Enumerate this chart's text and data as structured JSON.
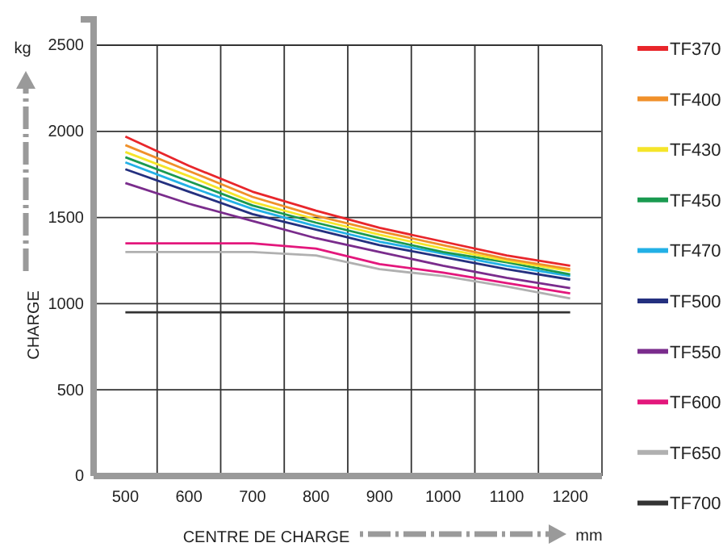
{
  "chart_data": {
    "type": "line",
    "xlabel": "CENTRE DE CHARGE",
    "ylabel": "CHARGE",
    "annotations": [
      "kg",
      "mm"
    ],
    "x": [
      500,
      600,
      700,
      800,
      900,
      1000,
      1100,
      1200
    ],
    "xlim": [
      450,
      1250
    ],
    "xticks": [
      500,
      {
        "value": 550,
        "label": null
      },
      600,
      {
        "value": 650,
        "label": null
      },
      700,
      {
        "value": 750,
        "label": null
      },
      800,
      {
        "value": 850,
        "label": null
      },
      900,
      {
        "value": 950,
        "label": null
      },
      1000,
      {
        "value": 1050,
        "label": null
      },
      1100,
      {
        "value": 1150,
        "label": null
      },
      1200
    ],
    "ylim": [
      0,
      2500
    ],
    "yticks": [
      0,
      500,
      1000,
      1500,
      2000,
      2500
    ],
    "grid": true,
    "legend": "right",
    "marker": "none",
    "line_style": "solid",
    "series": [
      {
        "name": "TF370",
        "color": "#e8262b",
        "values": [
          1970,
          1800,
          1650,
          1540,
          1440,
          1360,
          1280,
          1220
        ]
      },
      {
        "name": "TF400",
        "color": "#f0902a",
        "values": [
          1920,
          1770,
          1620,
          1510,
          1420,
          1340,
          1260,
          1200
        ]
      },
      {
        "name": "TF430",
        "color": "#f5e52a",
        "values": [
          1880,
          1740,
          1590,
          1490,
          1400,
          1320,
          1250,
          1190
        ]
      },
      {
        "name": "TF450",
        "color": "#1a9a50",
        "values": [
          1850,
          1710,
          1570,
          1470,
          1380,
          1300,
          1240,
          1170
        ]
      },
      {
        "name": "TF470",
        "color": "#22b0e6",
        "values": [
          1820,
          1680,
          1550,
          1450,
          1360,
          1290,
          1220,
          1160
        ]
      },
      {
        "name": "TF500",
        "color": "#24307f",
        "values": [
          1780,
          1650,
          1520,
          1430,
          1340,
          1270,
          1200,
          1140
        ]
      },
      {
        "name": "TF550",
        "color": "#7a2c8c",
        "values": [
          1700,
          1580,
          1480,
          1380,
          1300,
          1220,
          1150,
          1090
        ]
      },
      {
        "name": "TF600",
        "color": "#e3177c",
        "values": [
          1350,
          1350,
          1350,
          1320,
          1230,
          1180,
          1120,
          1060
        ]
      },
      {
        "name": "TF650",
        "color": "#b0b0b0",
        "values": [
          1300,
          1300,
          1300,
          1280,
          1200,
          1160,
          1100,
          1030
        ]
      },
      {
        "name": "TF700",
        "color": "#333333",
        "values": [
          950,
          950,
          950,
          950,
          950,
          950,
          950,
          950
        ]
      }
    ]
  }
}
